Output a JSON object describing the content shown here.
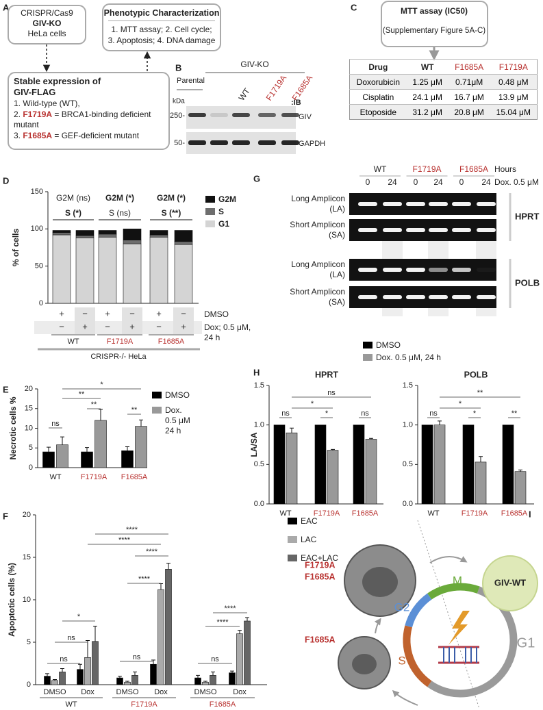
{
  "panel_labels": [
    "A",
    "B",
    "C",
    "D",
    "E",
    "F",
    "G",
    "H",
    "I"
  ],
  "panel_a": {
    "source": {
      "line1": "CRISPR/Cas9",
      "line2": "GIV-KO",
      "line3": "HeLa cells"
    },
    "phenotype": {
      "title": "Phenotypic Characterization",
      "line1": "1. MTT assay; 2. Cell cycle;",
      "line2": "3. Apoptosis; 4. DNA damage"
    },
    "stable": {
      "title": "Stable expression of GIV-FLAG",
      "items": [
        {
          "text": "1. Wild-type (WT),"
        },
        {
          "prefix": "2. ",
          "mutant": "F1719A",
          "text": " = BRCA1-binding deficient mutant"
        },
        {
          "prefix": "3. ",
          "mutant": "F1685A",
          "text": " = GEF-deficient mutant"
        }
      ]
    }
  },
  "panel_b": {
    "group": "GIV-KO",
    "parental": "Parental",
    "lanes": [
      "WT",
      "F1719A",
      "F1685A"
    ],
    "unit": "kDa",
    "ib": ":IB",
    "markers": [
      "250-",
      "50-"
    ],
    "proteins": [
      "GIV",
      "GAPDH"
    ]
  },
  "panel_c": {
    "title": "MTT assay (IC50)",
    "subtitle": "(Supplementary Figure 5A-C)",
    "table": {
      "header": [
        "Drug",
        "WT",
        "F1685A",
        "F1719A"
      ],
      "rows": [
        [
          "Doxorubicin",
          "1.25 μM",
          "0.71μM",
          "0.48 μM"
        ],
        [
          "Cisplatin",
          "24.1 μM",
          "16.7 μM",
          "13.9 μM"
        ],
        [
          "Etoposide",
          "31.2 μM",
          "20.8 μM",
          "15.04 μM"
        ]
      ]
    }
  },
  "chart_data": [
    {
      "type": "bar",
      "stacked": true,
      "ylabel": "% of cells",
      "categories": [
        null,
        null,
        null,
        null,
        null,
        null
      ],
      "series": [
        {
          "name": "G1",
          "color": "#d4d4d4",
          "values": [
            92,
            88,
            89,
            80,
            89,
            79
          ]
        },
        {
          "name": "S",
          "color": "#6e6e6e",
          "values": [
            3,
            3,
            4,
            5,
            3,
            4
          ]
        },
        {
          "name": "G2M",
          "color": "#111111",
          "values": [
            3,
            7,
            5,
            15,
            6,
            15
          ]
        }
      ],
      "ylim": [
        0,
        150
      ],
      "yticks": [
        0,
        50,
        100,
        150
      ],
      "annotations": [
        [
          "G2M (ns)",
          "S (*)"
        ],
        [
          "G2M (*)",
          "S (ns)"
        ],
        [
          "G2M (*)",
          "S (**)"
        ]
      ],
      "treatments": [
        {
          "name": "DMSO",
          "values": [
            "+",
            "−",
            "+",
            "−",
            "+",
            "−"
          ]
        },
        {
          "name": "Dox; 0.5 μM, 24 h",
          "values": [
            "−",
            "+",
            "−",
            "+",
            "−",
            "+"
          ]
        }
      ],
      "groups": [
        "WT",
        "F1719A",
        "F1685A"
      ],
      "group_colors": [
        "#222222",
        "#b8312f",
        "#b8312f"
      ],
      "footer": "CRISPR-/- HeLa"
    },
    {
      "type": "bar",
      "ylabel": "Necrotic cells %",
      "categories": [
        "WT",
        "F1719A",
        "F1685A"
      ],
      "category_colors": [
        "#222222",
        "#b8312f",
        "#b8312f"
      ],
      "series": [
        {
          "name": "DMSO",
          "color": "#000000",
          "values": [
            4,
            4,
            4.3
          ],
          "errors": [
            1.2,
            1.1,
            1.0
          ]
        },
        {
          "name": "Dox. 0.5 μM 24 h",
          "color": "#999999",
          "values": [
            5.8,
            12,
            10.5
          ],
          "errors": [
            2,
            2.8,
            1.6
          ]
        }
      ],
      "ylim": [
        0,
        20
      ],
      "yticks": [
        0,
        5,
        10,
        15,
        20
      ],
      "significance": [
        "*",
        "**",
        "**",
        "ns",
        "**"
      ]
    },
    {
      "type": "bar",
      "ylabel": "Apoptotic cells (%)",
      "categories": [
        "DMSO",
        "Dox",
        "DMSO",
        "Dox",
        "DMSO",
        "Dox"
      ],
      "groups": [
        "WT",
        "F1719A",
        "F1685A"
      ],
      "group_colors": [
        "#222222",
        "#b8312f",
        "#b8312f"
      ],
      "series": [
        {
          "name": "EAC",
          "color": "#000000",
          "values": [
            1.0,
            1.8,
            0.8,
            2.4,
            0.8,
            1.4
          ],
          "errors": [
            0.3,
            0.6,
            0.2,
            0.5,
            0.3,
            0.2
          ]
        },
        {
          "name": "LAC",
          "color": "#aaaaaa",
          "values": [
            0.5,
            3.2,
            0.3,
            11.2,
            0.3,
            6.0
          ],
          "errors": [
            0.1,
            2.0,
            0.1,
            0.7,
            0.1,
            0.4
          ]
        },
        {
          "name": "EAC+LAC",
          "color": "#666666",
          "values": [
            1.5,
            5.1,
            1.1,
            13.6,
            1.1,
            7.5
          ],
          "errors": [
            0.4,
            1.8,
            0.4,
            0.7,
            0.4,
            0.4
          ]
        }
      ],
      "ylim": [
        0,
        20
      ],
      "yticks": [
        0,
        5,
        10,
        15,
        20
      ],
      "significance": [
        "ns",
        "ns",
        "*",
        "ns",
        "****",
        "****",
        "****",
        "****",
        "ns",
        "****",
        "****"
      ]
    },
    {
      "type": "bar",
      "title": "HPRT",
      "ylabel": "LA/SA",
      "categories": [
        "WT",
        "F1719A",
        "F1685A"
      ],
      "category_colors": [
        "#222222",
        "#b8312f",
        "#b8312f"
      ],
      "series": [
        {
          "name": "DMSO",
          "color": "#000000",
          "values": [
            1,
            1,
            1
          ]
        },
        {
          "name": "Dox. 0.5 μM, 24 h",
          "color": "#999999",
          "values": [
            0.9,
            0.68,
            0.82
          ],
          "errors": [
            0.06,
            0.01,
            0.01
          ]
        }
      ],
      "ylim": [
        0,
        1.5
      ],
      "yticks": [
        {
          "value": 0,
          "label": "0.0"
        },
        0.5,
        {
          "value": 1,
          "label": "1.0"
        },
        1.5
      ],
      "significance": [
        "ns",
        "*",
        "ns",
        "*",
        "ns"
      ]
    },
    {
      "type": "bar",
      "title": "POLB",
      "categories": [
        "WT",
        "F1719A",
        "F1685A"
      ],
      "category_colors": [
        "#222222",
        "#b8312f",
        "#b8312f"
      ],
      "series": [
        {
          "color": "#000000",
          "values": [
            1,
            1,
            1
          ]
        },
        {
          "color": "#999999",
          "values": [
            1.0,
            0.53,
            0.41
          ],
          "errors": [
            0.05,
            0.07,
            0.02
          ]
        }
      ],
      "ylim": [
        0,
        1.5
      ],
      "yticks": [
        {
          "value": 0,
          "label": "0.0"
        },
        0.5,
        {
          "value": 1,
          "label": "1.0"
        },
        1.5
      ],
      "significance": [
        "ns",
        "*",
        "**",
        "*",
        "**"
      ]
    }
  ],
  "panel_g": {
    "lanes": [
      "WT",
      "F1719A",
      "F1685A"
    ],
    "hours_label": "Hours",
    "hours": [
      0,
      24,
      0,
      24,
      0,
      24
    ],
    "treatment": "Dox. 0.5 μM",
    "genes": [
      {
        "name": "HPRT",
        "amplicons": [
          "Long Amplicon (LA)",
          "Short Amplicon (SA)"
        ]
      },
      {
        "name": "POLB",
        "amplicons": [
          "Long Amplicon (LA)",
          "Short Amplicon (SA)"
        ]
      }
    ]
  },
  "panel_i": {
    "mutants_top": [
      "F1719A",
      "F1685A"
    ],
    "mutant_bottom": "F1685A",
    "wt": "GIV-WT",
    "phases": [
      "M",
      "G2",
      "S",
      "G1"
    ]
  }
}
